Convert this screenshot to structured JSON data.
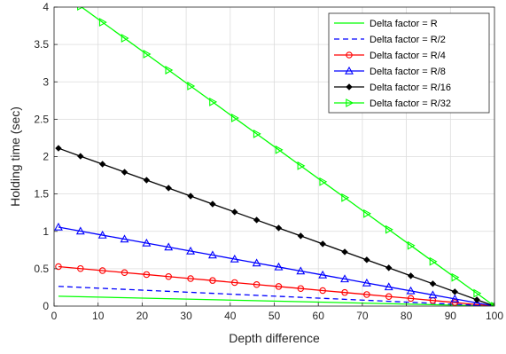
{
  "chart_data": {
    "type": "line",
    "title": "",
    "xlabel": "Depth difference",
    "ylabel": "Holding time (sec)",
    "xlim": [
      0,
      100
    ],
    "ylim": [
      0,
      4
    ],
    "xticks": [
      0,
      10,
      20,
      30,
      40,
      50,
      60,
      70,
      80,
      90,
      100
    ],
    "yticks": [
      0,
      0.5,
      1,
      1.5,
      2,
      2.5,
      3,
      3.5,
      4
    ],
    "ytick_labels": [
      "0",
      "0.5",
      "1",
      "1.5",
      "2",
      "2.5",
      "3",
      "3.5",
      "4"
    ],
    "grid": true,
    "legend_position": "top-right",
    "series": [
      {
        "name": "Delta factor = R",
        "color": "#00ff00",
        "line": "solid",
        "marker": "none",
        "x": [
          1,
          100
        ],
        "y": [
          0.132,
          0
        ]
      },
      {
        "name": "Delta factor = R/2",
        "color": "#0000ff",
        "line": "dashed",
        "marker": "none",
        "x": [
          1,
          100
        ],
        "y": [
          0.264,
          0
        ]
      },
      {
        "name": "Delta factor = R/4",
        "color": "#ff0000",
        "line": "solid",
        "marker": "circle",
        "x": [
          1,
          6,
          11,
          16,
          21,
          26,
          31,
          36,
          41,
          46,
          51,
          56,
          61,
          66,
          71,
          76,
          81,
          86,
          91,
          96,
          100
        ],
        "y": [
          0.528,
          0.502,
          0.475,
          0.448,
          0.422,
          0.395,
          0.368,
          0.342,
          0.315,
          0.288,
          0.262,
          0.235,
          0.208,
          0.182,
          0.155,
          0.128,
          0.102,
          0.075,
          0.048,
          0.021,
          0
        ]
      },
      {
        "name": "Delta factor = R/8",
        "color": "#0000ff",
        "line": "solid",
        "marker": "triangle-up",
        "x": [
          1,
          6,
          11,
          16,
          21,
          26,
          31,
          36,
          41,
          46,
          51,
          56,
          61,
          66,
          71,
          76,
          81,
          86,
          91,
          96,
          100
        ],
        "y": [
          1.056,
          1.003,
          0.949,
          0.896,
          0.843,
          0.789,
          0.736,
          0.683,
          0.629,
          0.576,
          0.523,
          0.469,
          0.416,
          0.363,
          0.309,
          0.256,
          0.203,
          0.149,
          0.096,
          0.043,
          0
        ]
      },
      {
        "name": "Delta factor = R/16",
        "color": "#000000",
        "line": "solid",
        "marker": "diamond",
        "x": [
          1,
          6,
          11,
          16,
          21,
          26,
          31,
          36,
          41,
          46,
          51,
          56,
          61,
          66,
          71,
          76,
          81,
          86,
          91,
          96,
          100
        ],
        "y": [
          2.112,
          2.005,
          1.899,
          1.792,
          1.685,
          1.579,
          1.472,
          1.365,
          1.259,
          1.152,
          1.045,
          0.939,
          0.832,
          0.725,
          0.619,
          0.512,
          0.405,
          0.299,
          0.192,
          0.085,
          0
        ]
      },
      {
        "name": "Delta factor = R/32",
        "color": "#00ff00",
        "line": "solid",
        "marker": "triangle-right",
        "x": [
          1,
          6,
          11,
          16,
          21,
          26,
          31,
          36,
          41,
          46,
          51,
          56,
          61,
          66,
          71,
          76,
          81,
          86,
          91,
          96,
          100
        ],
        "y": [
          4.224,
          4.011,
          3.797,
          3.584,
          3.371,
          3.157,
          2.944,
          2.731,
          2.517,
          2.304,
          2.091,
          1.877,
          1.664,
          1.451,
          1.237,
          1.024,
          0.811,
          0.597,
          0.384,
          0.171,
          0
        ]
      }
    ]
  }
}
